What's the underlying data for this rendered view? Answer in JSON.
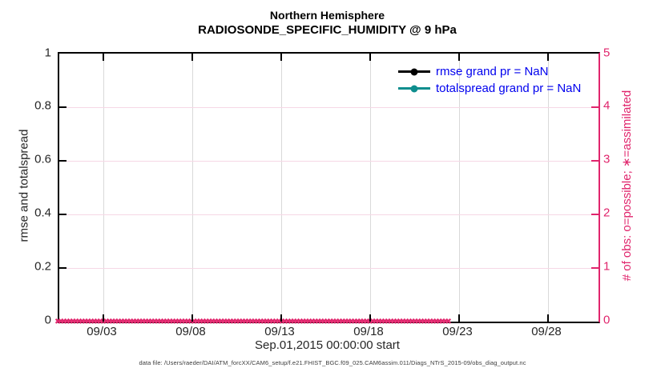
{
  "title": {
    "line1": "Northern Hemisphere",
    "line2": "RADIOSONDE_SPECIFIC_HUMIDITY @ 9 hPa"
  },
  "left_axis": {
    "label": "rmse and totalspread",
    "ticks": [
      "1",
      "0.8",
      "0.6",
      "0.4",
      "0.2",
      "0"
    ]
  },
  "right_axis": {
    "label": "# of obs: o=possible; ∗=assimilated",
    "ticks": [
      "5",
      "4",
      "3",
      "2",
      "1",
      "0"
    ]
  },
  "x_axis": {
    "ticks": [
      "09/03",
      "09/08",
      "09/13",
      "09/18",
      "09/23",
      "09/28"
    ],
    "label": "Sep.01,2015 00:00:00 start"
  },
  "legend": {
    "items": [
      {
        "label": "rmse grand pr = NaN",
        "series_color": "#000000",
        "marker": "filled-circle"
      },
      {
        "label": "totalspread grand pr = NaN",
        "series_color": "#0E8E8E",
        "marker": "filled-circle"
      }
    ]
  },
  "footer": {
    "text": "data file: /Users/raeder/DAI/ATM_forcXX/CAM6_setup/f.e21.FHIST_BGC.f09_025.CAM6assim.011/Diags_NTrS_2015-09/obs_diag_output.nc"
  },
  "zero_band": {
    "marker": "✖",
    "count": 130,
    "color": "#E0256C"
  },
  "colors": {
    "axis_and_text": "#262626",
    "title_black": "#000000",
    "obs_pink": "#E0256C",
    "grid_gray": "#d9d9d9",
    "grid_pink": "#f6d7e5",
    "legend_text_blue": "#0000EE",
    "rmse_black": "#000000",
    "totalspread_teal": "#0E8E8E"
  },
  "chart_data": {
    "type": "line",
    "title": "Northern Hemisphere",
    "subtitle": "RADIOSONDE_SPECIFIC_HUMIDITY @ 9 hPa",
    "xlabel": "Sep.01,2015 00:00:00 start",
    "x_tick_labels": [
      "09/03",
      "09/08",
      "09/13",
      "09/18",
      "09/23",
      "09/28"
    ],
    "x_range_note": "time axis spans ~Sep 01 to Sep 30, 2015",
    "ylabel_left": "rmse and totalspread",
    "ylim_left": [
      0,
      1
    ],
    "yticks_left": [
      0,
      0.2,
      0.4,
      0.6,
      0.8,
      1
    ],
    "ylabel_right": "# of obs: o=possible; ∗=assimilated",
    "ylim_right": [
      0,
      5
    ],
    "yticks_right": [
      0,
      1,
      2,
      3,
      4,
      5
    ],
    "grid": true,
    "legend_position": "upper-right, no box, blue text",
    "series": [
      {
        "name": "rmse grand pr = NaN",
        "axis": "left",
        "color": "#000000",
        "marker": "filled-circle",
        "values": "NaN — no curve drawn"
      },
      {
        "name": "totalspread grand pr = NaN",
        "axis": "left",
        "color": "#0E8E8E",
        "marker": "filled-circle",
        "values": "NaN — no curve drawn"
      },
      {
        "name": "# of obs possible (o)",
        "axis": "right",
        "color": "#E0256C",
        "marker": "o",
        "values": [
          0,
          0,
          0,
          0,
          0,
          0
        ],
        "note": "constant 0 at every assimilation time across the month"
      },
      {
        "name": "# of obs assimilated (✖)",
        "axis": "right",
        "color": "#E0256C",
        "marker": "x",
        "values": [
          0,
          0,
          0,
          0,
          0,
          0
        ],
        "note": "constant 0 at every assimilation time across the month; dense overlapping markers form a band along y=0"
      }
    ]
  }
}
